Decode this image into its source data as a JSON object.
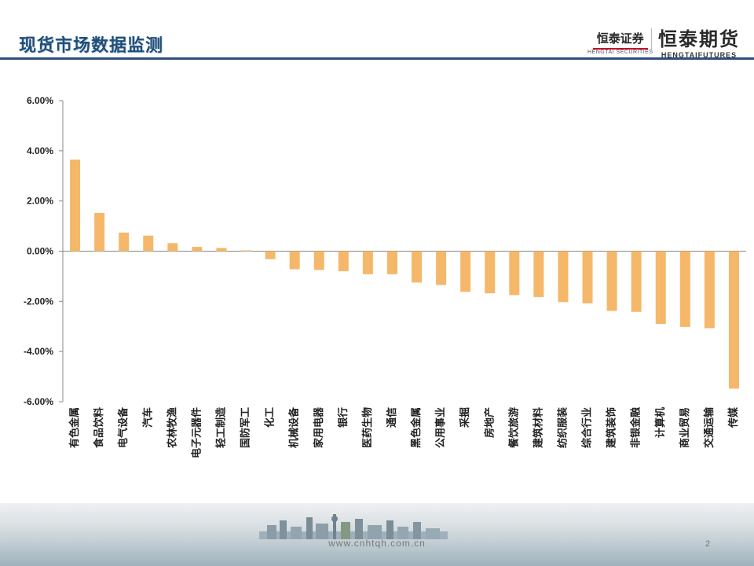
{
  "header": {
    "title": "现货市场数据监测",
    "logo_securities": "恒泰证券",
    "logo_securities_sub": "HENGTAI SECURITIES",
    "logo_futures": "恒泰期货",
    "logo_futures_sub": "HENGTAIFUTURES"
  },
  "footer": {
    "url": "www.cnhtqh.com.cn",
    "page": "2"
  },
  "colors": {
    "bar": "#f5b86a",
    "axis": "#888888",
    "title": "#1f4e79"
  },
  "chart_data": {
    "type": "bar",
    "title": "",
    "xlabel": "",
    "ylabel": "",
    "ylim": [
      -6,
      6
    ],
    "yticks": [
      6,
      4,
      2,
      0,
      -2,
      -4,
      -6
    ],
    "ytick_labels": [
      "6.00%",
      "4.00%",
      "2.00%",
      "0.00%",
      "-2.00%",
      "-4.00%",
      "-6.00%"
    ],
    "grid": false,
    "categories": [
      "有色金属",
      "食品饮料",
      "电气设备",
      "汽车",
      "农林牧渔",
      "电子元器件",
      "轻工制造",
      "国防军工",
      "化工",
      "机械设备",
      "家用电器",
      "银行",
      "医药生物",
      "通信",
      "黑色金属",
      "公用事业",
      "采掘",
      "房地产",
      "餐饮旅游",
      "建筑材料",
      "纺织服装",
      "综合行业",
      "建筑装饰",
      "非银金融",
      "计算机",
      "商业贸易",
      "交通运输",
      "传媒"
    ],
    "values": [
      3.65,
      1.52,
      0.74,
      0.62,
      0.32,
      0.17,
      0.13,
      0.03,
      -0.32,
      -0.72,
      -0.75,
      -0.8,
      -0.92,
      -0.92,
      -1.25,
      -1.35,
      -1.62,
      -1.68,
      -1.75,
      -1.83,
      -2.03,
      -2.08,
      -2.38,
      -2.42,
      -2.9,
      -3.02,
      -3.07,
      -5.48
    ]
  }
}
